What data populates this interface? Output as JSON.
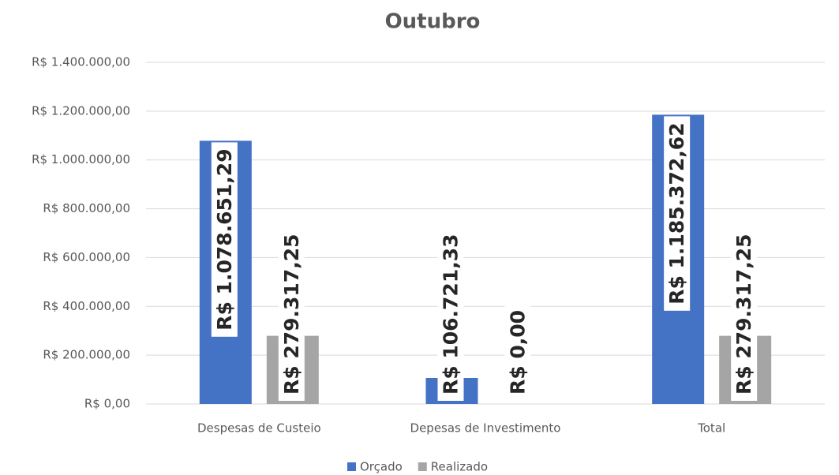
{
  "chart_data": {
    "type": "bar",
    "title": "Outubro",
    "categories": [
      "Despesas de Custeio",
      "Depesas de Investimento",
      "Total"
    ],
    "series": [
      {
        "name": "Orçado",
        "color": "#4472c4",
        "values": [
          1078651.29,
          106721.33,
          1185372.62
        ],
        "value_labels": [
          "R$ 1.078.651,29",
          "R$ 106.721,33",
          "R$ 1.185.372,62"
        ]
      },
      {
        "name": "Realizado",
        "color": "#a5a5a5",
        "values": [
          279317.25,
          0,
          279317.25
        ],
        "value_labels": [
          "R$ 279.317,25",
          "R$ 0,00",
          "R$ 279.317,25"
        ]
      }
    ],
    "ylim": [
      0,
      1400000
    ],
    "yticks": [
      {
        "value": 0,
        "label": "R$ 0,00"
      },
      {
        "value": 200000,
        "label": "R$ 200.000,00"
      },
      {
        "value": 400000,
        "label": "R$ 400.000,00"
      },
      {
        "value": 600000,
        "label": "R$ 600.000,00"
      },
      {
        "value": 800000,
        "label": "R$ 800.000,00"
      },
      {
        "value": 1000000,
        "label": "R$ 1.000.000,00"
      },
      {
        "value": 1200000,
        "label": "R$ 1.200.000,00"
      },
      {
        "value": 1400000,
        "label": "R$ 1.400.000,00"
      }
    ],
    "grid": true,
    "legend": "bottom"
  }
}
